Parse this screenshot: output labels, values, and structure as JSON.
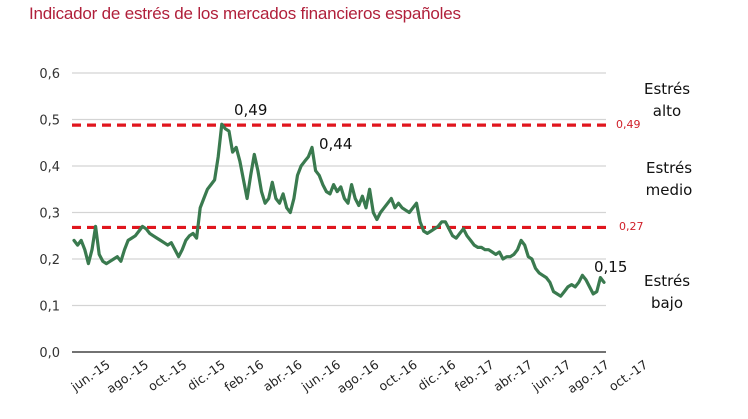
{
  "title": "Indicador de estrés de los mercados financieros españoles",
  "zones": {
    "high": {
      "line1": "Estrés",
      "line2": "alto"
    },
    "medium": {
      "line1": "Estrés",
      "line2": "medio"
    },
    "low": {
      "line1": "Estrés",
      "line2": "bajo"
    }
  },
  "thresholds": {
    "high_label": "0,49",
    "low_label": "0,27"
  },
  "annotations": {
    "peak1": "0,49",
    "peak2": "0,44",
    "last": "0,15"
  },
  "colors": {
    "title": "#b01f3a",
    "line": "#3a7a4f",
    "threshold": "#e0161e",
    "grid": "#d4d4d4"
  },
  "chart_data": {
    "type": "line",
    "title": "Indicador de estrés de los mercados financieros españoles",
    "xlabel": "",
    "ylabel": "",
    "ylim": [
      0,
      0.6
    ],
    "yticks": [
      "0,0",
      "0,1",
      "0,2",
      "0,3",
      "0,4",
      "0,5",
      "0,6"
    ],
    "categories": [
      "jun.-15",
      "ago.-15",
      "oct.-15",
      "dic.-15",
      "feb.-16",
      "abr.-16",
      "jun.-16",
      "ago.-16",
      "oct.-16",
      "dic.-16",
      "feb.-17",
      "abr.-17",
      "jun.-17",
      "ago.-17",
      "oct.-17"
    ],
    "grid": true,
    "legend": null,
    "thresholds": [
      {
        "value": 0.49,
        "label": "0,49",
        "style": "dashed red"
      },
      {
        "value": 0.27,
        "label": "0,27",
        "style": "dashed red"
      }
    ],
    "zones": [
      "Estrés alto",
      "Estrés medio",
      "Estrés bajo"
    ],
    "annotations": [
      {
        "label": "0,49",
        "at": "feb.-16 peak"
      },
      {
        "label": "0,44",
        "at": "ago.-16 peak"
      },
      {
        "label": "0,15",
        "at": "last value"
      }
    ],
    "series": [
      {
        "name": "Indicador de estrés",
        "values": [
          0.24,
          0.23,
          0.24,
          0.22,
          0.19,
          0.22,
          0.27,
          0.21,
          0.195,
          0.19,
          0.195,
          0.2,
          0.205,
          0.195,
          0.22,
          0.24,
          0.245,
          0.25,
          0.26,
          0.27,
          0.265,
          0.255,
          0.25,
          0.245,
          0.24,
          0.235,
          0.23,
          0.235,
          0.22,
          0.205,
          0.22,
          0.24,
          0.25,
          0.255,
          0.245,
          0.31,
          0.33,
          0.35,
          0.36,
          0.37,
          0.42,
          0.49,
          0.48,
          0.475,
          0.43,
          0.44,
          0.41,
          0.37,
          0.33,
          0.38,
          0.425,
          0.39,
          0.345,
          0.32,
          0.33,
          0.365,
          0.33,
          0.32,
          0.34,
          0.31,
          0.3,
          0.33,
          0.38,
          0.4,
          0.41,
          0.42,
          0.44,
          0.39,
          0.38,
          0.36,
          0.345,
          0.34,
          0.36,
          0.345,
          0.355,
          0.33,
          0.32,
          0.36,
          0.33,
          0.315,
          0.335,
          0.31,
          0.35,
          0.3,
          0.285,
          0.3,
          0.31,
          0.32,
          0.33,
          0.31,
          0.32,
          0.31,
          0.305,
          0.3,
          0.31,
          0.32,
          0.28,
          0.26,
          0.255,
          0.26,
          0.265,
          0.27,
          0.28,
          0.28,
          0.265,
          0.25,
          0.245,
          0.255,
          0.265,
          0.25,
          0.24,
          0.23,
          0.225,
          0.225,
          0.22,
          0.22,
          0.215,
          0.21,
          0.215,
          0.2,
          0.205,
          0.205,
          0.21,
          0.22,
          0.24,
          0.23,
          0.205,
          0.2,
          0.18,
          0.17,
          0.165,
          0.16,
          0.15,
          0.13,
          0.125,
          0.12,
          0.13,
          0.14,
          0.145,
          0.14,
          0.15,
          0.165,
          0.155,
          0.14,
          0.125,
          0.13,
          0.16,
          0.15
        ]
      }
    ]
  }
}
